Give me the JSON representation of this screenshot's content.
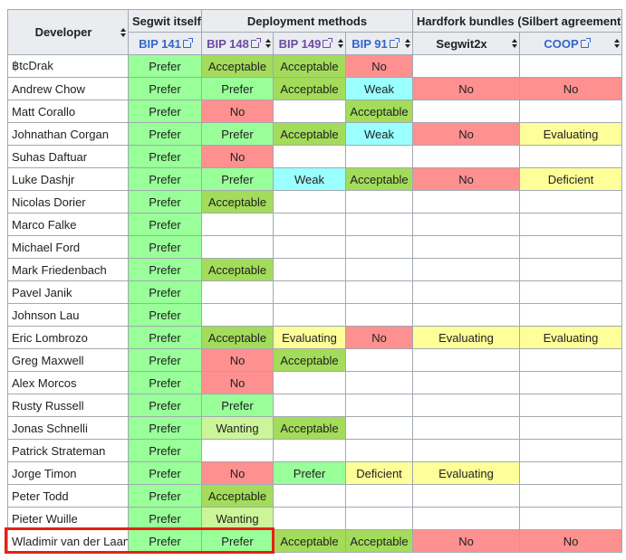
{
  "table": {
    "header": {
      "developer": "Developer",
      "groups": [
        "Segwit itself",
        "Deployment methods",
        "Hardfork bundles (Silbert agreement)"
      ],
      "columns": [
        {
          "text": "BIP 141",
          "color": "#3366cc"
        },
        {
          "text": "BIP 148",
          "color": "#6b4ba1"
        },
        {
          "text": "BIP 149",
          "color": "#6b4ba1"
        },
        {
          "text": "BIP 91",
          "color": "#3366cc"
        },
        {
          "text": "Segwit2x",
          "color": "#000000"
        },
        {
          "text": "COOP",
          "color": "#3366cc"
        }
      ]
    },
    "rows": [
      {
        "developer": "฿tcDrak",
        "cells": [
          {
            "text": "Prefer",
            "color": "#99ff99"
          },
          {
            "text": "Acceptable",
            "color": "#a3dc5a"
          },
          {
            "text": "Acceptable",
            "color": "#a3dc5a"
          },
          {
            "text": "No",
            "color": "#ff9090"
          },
          null,
          null
        ]
      },
      {
        "developer": "Andrew Chow",
        "cells": [
          {
            "text": "Prefer",
            "color": "#99ff99"
          },
          {
            "text": "Prefer",
            "color": "#99ff99"
          },
          {
            "text": "Acceptable",
            "color": "#a3dc5a"
          },
          {
            "text": "Weak",
            "color": "#99ffff"
          },
          {
            "text": "No",
            "color": "#ff9090"
          },
          {
            "text": "No",
            "color": "#ff9090"
          }
        ]
      },
      {
        "developer": "Matt Corallo",
        "cells": [
          {
            "text": "Prefer",
            "color": "#99ff99"
          },
          {
            "text": "No",
            "color": "#ff9090"
          },
          null,
          {
            "text": "Acceptable",
            "color": "#a3dc5a"
          },
          null,
          null
        ]
      },
      {
        "developer": "Johnathan Corgan",
        "cells": [
          {
            "text": "Prefer",
            "color": "#99ff99"
          },
          {
            "text": "Prefer",
            "color": "#99ff99"
          },
          {
            "text": "Acceptable",
            "color": "#a3dc5a"
          },
          {
            "text": "Weak",
            "color": "#99ffff"
          },
          {
            "text": "No",
            "color": "#ff9090"
          },
          {
            "text": "Evaluating",
            "color": "#ffff99"
          }
        ]
      },
      {
        "developer": "Suhas Daftuar",
        "cells": [
          {
            "text": "Prefer",
            "color": "#99ff99"
          },
          {
            "text": "No",
            "color": "#ff9090"
          },
          null,
          null,
          null,
          null
        ]
      },
      {
        "developer": "Luke Dashjr",
        "cells": [
          {
            "text": "Prefer",
            "color": "#99ff99"
          },
          {
            "text": "Prefer",
            "color": "#99ff99"
          },
          {
            "text": "Weak",
            "color": "#99ffff"
          },
          {
            "text": "Acceptable",
            "color": "#a3dc5a"
          },
          {
            "text": "No",
            "color": "#ff9090"
          },
          {
            "text": "Deficient",
            "color": "#ffff99"
          }
        ]
      },
      {
        "developer": "Nicolas Dorier",
        "cells": [
          {
            "text": "Prefer",
            "color": "#99ff99"
          },
          {
            "text": "Acceptable",
            "color": "#a3dc5a"
          },
          null,
          null,
          null,
          null
        ]
      },
      {
        "developer": "Marco Falke",
        "cells": [
          {
            "text": "Prefer",
            "color": "#99ff99"
          },
          null,
          null,
          null,
          null,
          null
        ]
      },
      {
        "developer": "Michael Ford",
        "cells": [
          {
            "text": "Prefer",
            "color": "#99ff99"
          },
          null,
          null,
          null,
          null,
          null
        ]
      },
      {
        "developer": "Mark Friedenbach",
        "cells": [
          {
            "text": "Prefer",
            "color": "#99ff99"
          },
          {
            "text": "Acceptable",
            "color": "#a3dc5a"
          },
          null,
          null,
          null,
          null
        ]
      },
      {
        "developer": "Pavel Janik",
        "cells": [
          {
            "text": "Prefer",
            "color": "#99ff99"
          },
          null,
          null,
          null,
          null,
          null
        ]
      },
      {
        "developer": "Johnson Lau",
        "cells": [
          {
            "text": "Prefer",
            "color": "#99ff99"
          },
          null,
          null,
          null,
          null,
          null
        ]
      },
      {
        "developer": "Eric Lombrozo",
        "cells": [
          {
            "text": "Prefer",
            "color": "#99ff99"
          },
          {
            "text": "Acceptable",
            "color": "#a3dc5a"
          },
          {
            "text": "Evaluating",
            "color": "#ffff99"
          },
          {
            "text": "No",
            "color": "#ff9090"
          },
          {
            "text": "Evaluating",
            "color": "#ffff99"
          },
          {
            "text": "Evaluating",
            "color": "#ffff99"
          }
        ]
      },
      {
        "developer": "Greg Maxwell",
        "cells": [
          {
            "text": "Prefer",
            "color": "#99ff99"
          },
          {
            "text": "No",
            "color": "#ff9090"
          },
          {
            "text": "Acceptable",
            "color": "#a3dc5a"
          },
          null,
          null,
          null
        ]
      },
      {
        "developer": "Alex Morcos",
        "cells": [
          {
            "text": "Prefer",
            "color": "#99ff99"
          },
          {
            "text": "No",
            "color": "#ff9090"
          },
          null,
          null,
          null,
          null
        ]
      },
      {
        "developer": "Rusty Russell",
        "cells": [
          {
            "text": "Prefer",
            "color": "#99ff99"
          },
          {
            "text": "Prefer",
            "color": "#99ff99"
          },
          null,
          null,
          null,
          null
        ]
      },
      {
        "developer": "Jonas Schnelli",
        "cells": [
          {
            "text": "Prefer",
            "color": "#99ff99"
          },
          {
            "text": "Wanting",
            "color": "#ccf599"
          },
          {
            "text": "Acceptable",
            "color": "#a3dc5a"
          },
          null,
          null,
          null
        ]
      },
      {
        "developer": "Patrick Strateman",
        "cells": [
          {
            "text": "Prefer",
            "color": "#99ff99"
          },
          null,
          null,
          null,
          null,
          null
        ]
      },
      {
        "developer": "Jorge Timon",
        "cells": [
          {
            "text": "Prefer",
            "color": "#99ff99"
          },
          {
            "text": "No",
            "color": "#ff9090"
          },
          {
            "text": "Prefer",
            "color": "#99ff99"
          },
          {
            "text": "Deficient",
            "color": "#ffff99"
          },
          {
            "text": "Evaluating",
            "color": "#ffff99"
          },
          null
        ]
      },
      {
        "developer": "Peter Todd",
        "cells": [
          {
            "text": "Prefer",
            "color": "#99ff99"
          },
          {
            "text": "Acceptable",
            "color": "#a3dc5a"
          },
          null,
          null,
          null,
          null
        ]
      },
      {
        "developer": "Pieter Wuille",
        "cells": [
          {
            "text": "Prefer",
            "color": "#99ff99"
          },
          {
            "text": "Wanting",
            "color": "#ccf599"
          },
          null,
          null,
          null,
          null
        ]
      },
      {
        "developer": "Wladimir van der Laan",
        "cells": [
          {
            "text": "Prefer",
            "color": "#99ff99"
          },
          {
            "text": "Prefer",
            "color": "#99ff99"
          },
          {
            "text": "Acceptable",
            "color": "#a3dc5a"
          },
          {
            "text": "Acceptable",
            "color": "#a3dc5a"
          },
          {
            "text": "No",
            "color": "#ff9090"
          },
          {
            "text": "No",
            "color": "#ff9090"
          }
        ]
      }
    ]
  }
}
